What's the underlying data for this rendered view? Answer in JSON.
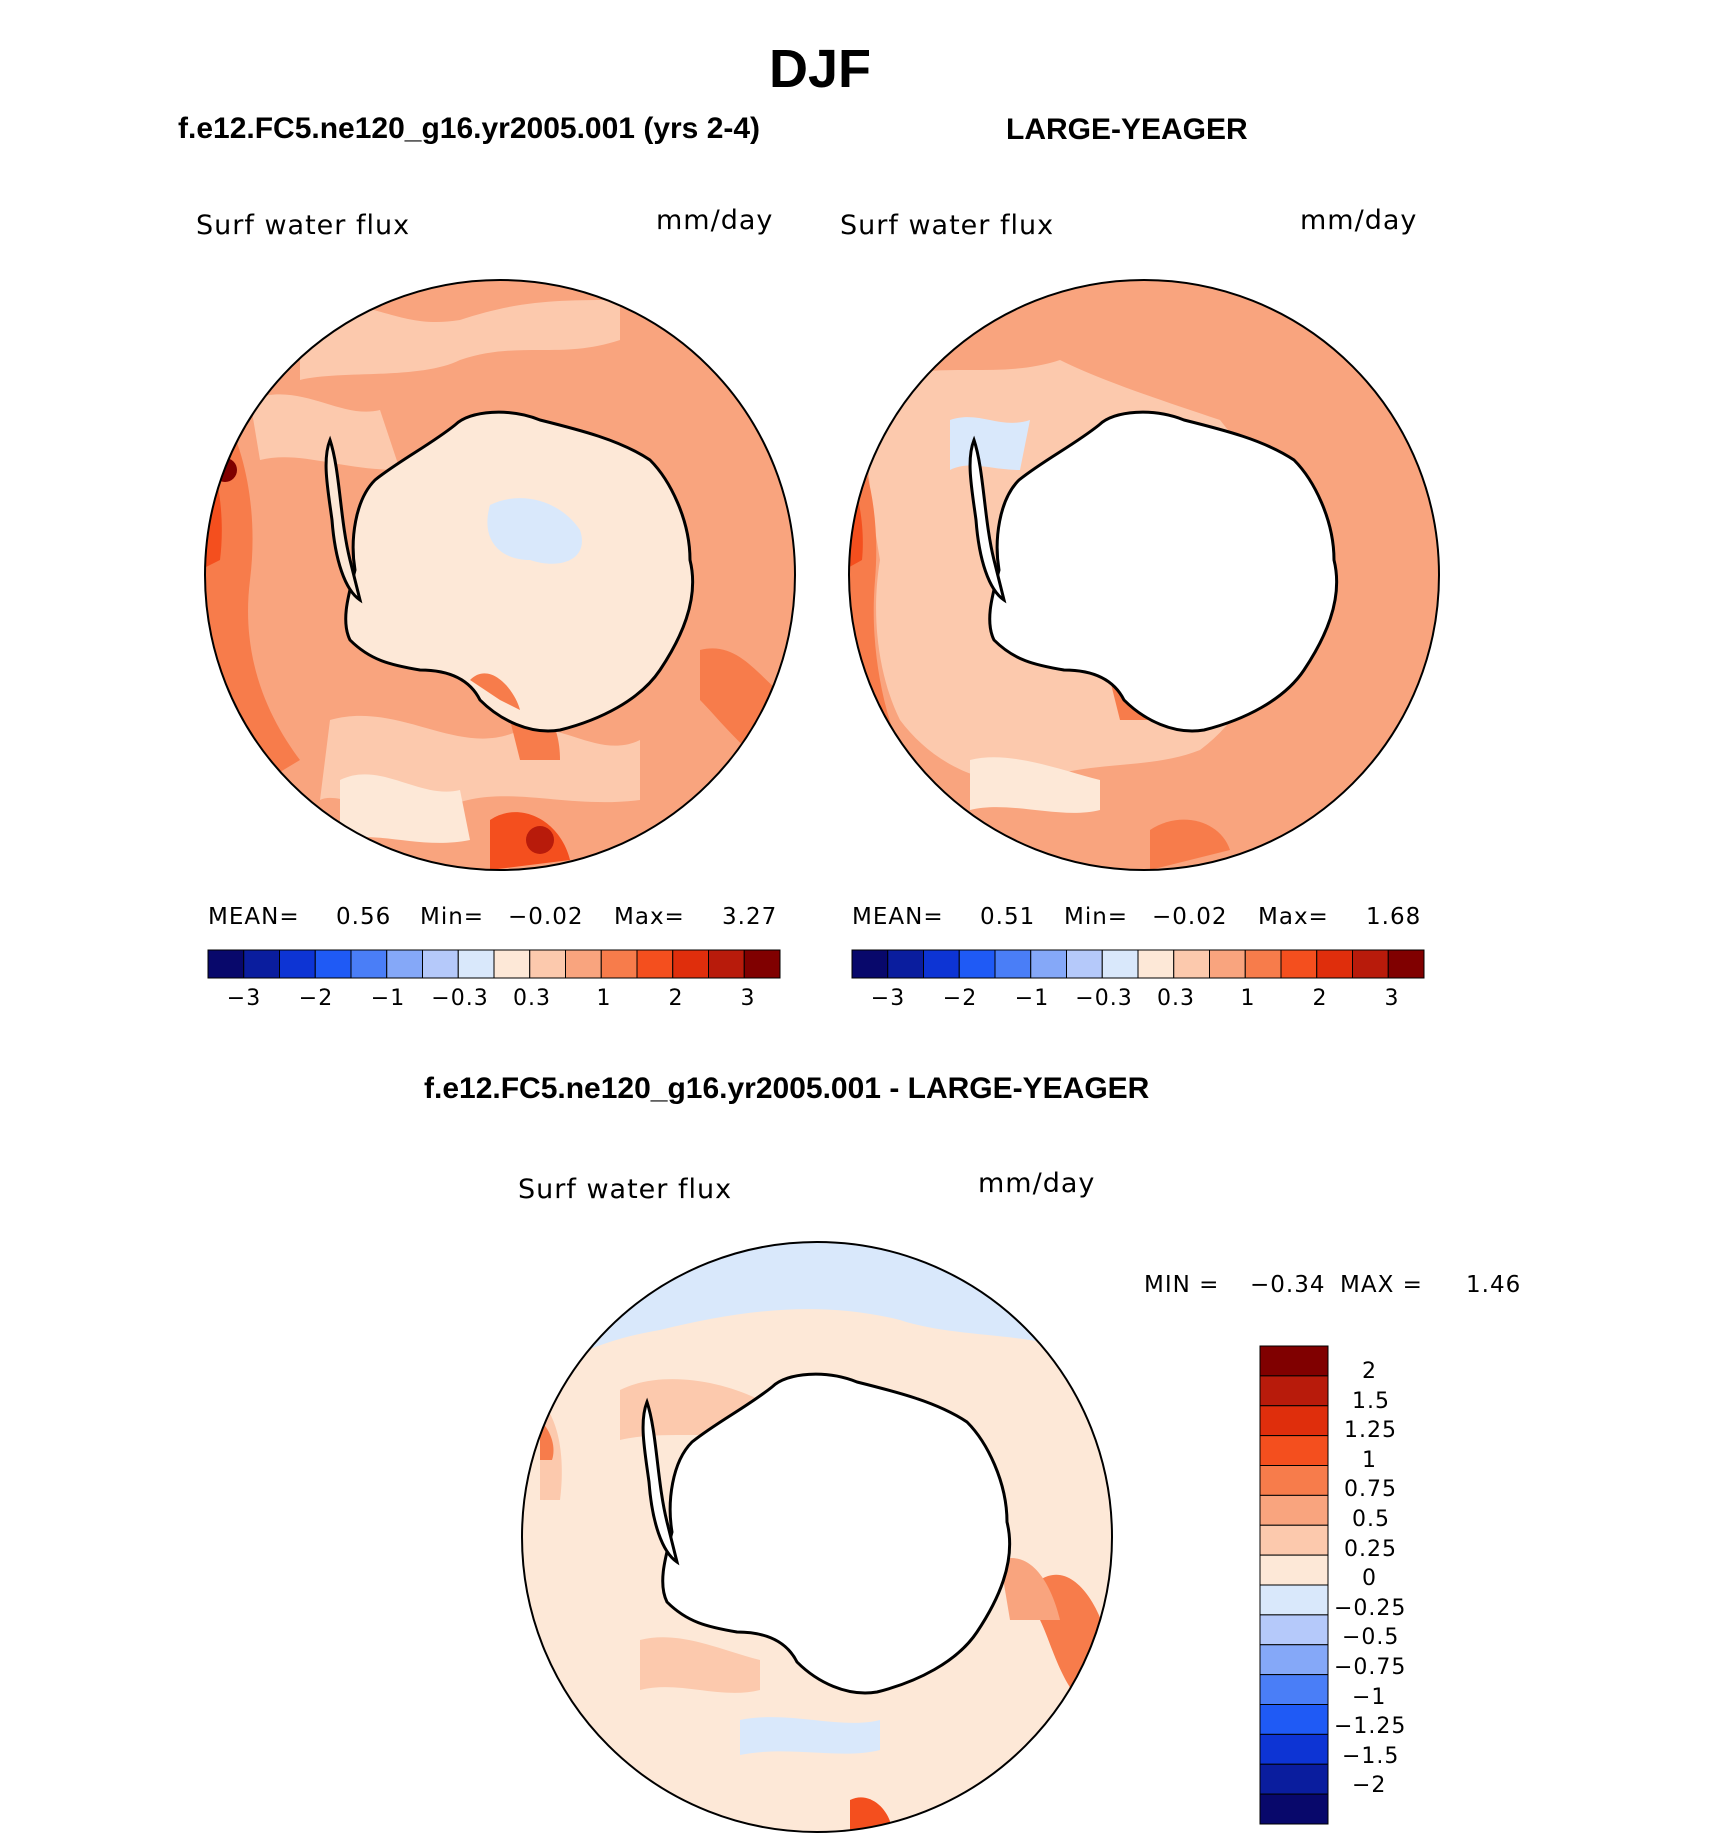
{
  "title": "DJF",
  "panels": [
    {
      "case": "f.e12.FC5.ne120_g16.yr2005.001 (yrs 2-4)",
      "variable": "Surf water flux",
      "units": "mm/day",
      "stats": {
        "mean_label": "MEAN=",
        "mean": "0.56",
        "min_label": "Min=",
        "min": "−0.02",
        "max_label": "Max=",
        "max": "3.27"
      }
    },
    {
      "case": "LARGE-YEAGER",
      "variable": "Surf water flux",
      "units": "mm/day",
      "stats": {
        "mean_label": "MEAN=",
        "mean": "0.51",
        "min_label": "Min=",
        "min": "−0.02",
        "max_label": "Max=",
        "max": "1.68"
      }
    }
  ],
  "shared_colorbar": {
    "tick_labels": [
      "−3",
      "−2",
      "−1",
      "−0.3",
      "0.3",
      "1",
      "2",
      "3"
    ],
    "colors": [
      "#08086b",
      "#0a1d9e",
      "#0d34d4",
      "#1f5af5",
      "#4a7ef7",
      "#85a8f8",
      "#b5c9fa",
      "#d9e8fb",
      "#fde8d7",
      "#fcc9ad",
      "#f9a47e",
      "#f77c4b",
      "#f44f1e",
      "#df2e0c",
      "#b81b0b",
      "#800000"
    ]
  },
  "diff_panel": {
    "title": "f.e12.FC5.ne120_g16.yr2005.001 - LARGE-YEAGER",
    "variable": "Surf water flux",
    "units": "mm/day",
    "stats": {
      "min_label": "MIN =",
      "min": "−0.34",
      "max_label": "MAX =",
      "max": "1.46"
    },
    "colorbar": {
      "levels": [
        "2",
        "1.5",
        "1.25",
        "1",
        "0.75",
        "0.5",
        "0.25",
        "0",
        "−0.25",
        "−0.5",
        "−0.75",
        "−1",
        "−1.25",
        "−1.5",
        "−2"
      ],
      "colors": [
        "#800000",
        "#b81b0b",
        "#df2e0c",
        "#f44f1e",
        "#f77c4b",
        "#f9a47e",
        "#fcc9ad",
        "#fde8d7",
        "#d9e8fb",
        "#b5c9fa",
        "#85a8f8",
        "#4a7ef7",
        "#1f5af5",
        "#0d34d4",
        "#0a1d9e",
        "#08086b"
      ]
    }
  }
}
